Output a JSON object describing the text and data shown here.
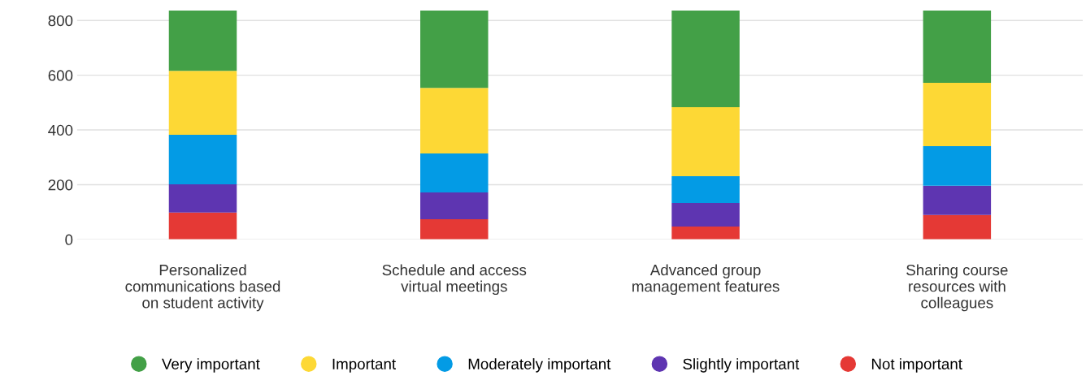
{
  "chart_data": {
    "type": "bar",
    "stacked": true,
    "categories": [
      "Personalized communications based on student activity",
      "Schedule and access virtual meetings",
      "Advanced group management features",
      "Sharing course resources with colleagues"
    ],
    "series": [
      {
        "name": "Not important",
        "color": "#e53935",
        "values": [
          98,
          74,
          47,
          89
        ]
      },
      {
        "name": "Slightly important",
        "color": "#5e35b1",
        "values": [
          103,
          98,
          86,
          107
        ]
      },
      {
        "name": "Moderately important",
        "color": "#039be5",
        "values": [
          181,
          142,
          98,
          145
        ]
      },
      {
        "name": "Important",
        "color": "#fdd835",
        "values": [
          234,
          240,
          252,
          231
        ]
      },
      {
        "name": "Very important",
        "color": "#43a047",
        "values": [
          220,
          282,
          353,
          264
        ]
      }
    ],
    "ylim": [
      0,
      836
    ],
    "yticks": [
      0,
      200,
      400,
      600,
      800
    ],
    "grid": "y",
    "legend": "bottom"
  }
}
